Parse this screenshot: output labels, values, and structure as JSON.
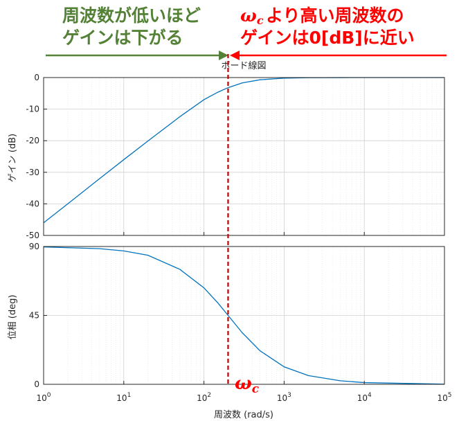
{
  "annotations": {
    "left_line1": "周波数が低いほど",
    "left_line2": "ゲインは下がる",
    "right_line1_suffix": "より高い周波数の",
    "right_line2": "ゲインは0[dB]に近い",
    "omega_symbol": "ω",
    "omega_subscript": "c",
    "colors": {
      "green": "#538135",
      "red": "#ff0000"
    }
  },
  "chart_data": [
    {
      "type": "line",
      "title": "ボード線図",
      "xlabel": "",
      "ylabel": "ゲイン (dB)",
      "x_scale": "log",
      "xlim": [
        1,
        100000
      ],
      "ylim": [
        -50,
        0
      ],
      "yticks": [
        0,
        -10,
        -20,
        -30,
        -40,
        -50
      ],
      "grid": true,
      "series_color": "#0072bd",
      "series": [
        {
          "x": [
            1,
            2,
            5,
            10,
            20,
            50,
            100,
            150,
            200,
            300,
            500,
            1000,
            2000,
            5000,
            10000,
            100000
          ],
          "values": [
            -46.0,
            -40.0,
            -32.0,
            -26.0,
            -20.1,
            -12.4,
            -7.0,
            -4.6,
            -3.2,
            -1.7,
            -0.7,
            -0.2,
            -0.05,
            -0.01,
            0.0,
            0.0
          ]
        }
      ]
    },
    {
      "type": "line",
      "title": "",
      "xlabel": "周波数 (rad/s)",
      "ylabel": "位相 (deg)",
      "x_scale": "log",
      "xlim": [
        1,
        100000
      ],
      "ylim": [
        0,
        90
      ],
      "yticks": [
        90,
        45,
        0
      ],
      "xticks": [
        1,
        10,
        100,
        1000,
        10000,
        100000
      ],
      "xtick_labels": [
        {
          "base": "10",
          "exp": "0"
        },
        {
          "base": "10",
          "exp": "1"
        },
        {
          "base": "10",
          "exp": "2"
        },
        {
          "base": "10",
          "exp": "3"
        },
        {
          "base": "10",
          "exp": "4"
        },
        {
          "base": "10",
          "exp": "5"
        }
      ],
      "grid": true,
      "series_color": "#0072bd",
      "series": [
        {
          "x": [
            1,
            5,
            10,
            20,
            50,
            100,
            150,
            200,
            300,
            500,
            1000,
            2000,
            5000,
            10000,
            100000
          ],
          "values": [
            89.7,
            88.6,
            87.1,
            84.3,
            75.1,
            63.0,
            53.0,
            45.0,
            33.7,
            21.9,
            11.4,
            5.7,
            2.3,
            1.1,
            0.1
          ]
        }
      ]
    }
  ],
  "marker": {
    "omega_c_value": 200,
    "color": "#c00000"
  }
}
